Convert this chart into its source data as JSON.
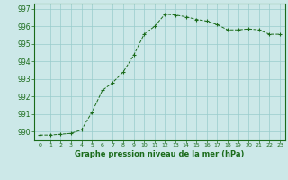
{
  "x": [
    0,
    1,
    2,
    3,
    4,
    5,
    6,
    7,
    8,
    9,
    10,
    11,
    12,
    13,
    14,
    15,
    16,
    17,
    18,
    19,
    20,
    21,
    22,
    23
  ],
  "y": [
    989.8,
    989.8,
    989.85,
    989.9,
    990.1,
    991.1,
    992.35,
    992.8,
    993.4,
    994.35,
    995.55,
    996.0,
    996.7,
    996.65,
    996.55,
    996.4,
    996.3,
    996.1,
    995.8,
    995.8,
    995.85,
    995.8,
    995.55,
    995.55
  ],
  "line_color": "#1a6b1a",
  "marker_color": "#1a6b1a",
  "bg_color": "#cce8e8",
  "grid_color": "#99cccc",
  "xlabel": "Graphe pression niveau de la mer (hPa)",
  "xlabel_color": "#1a6b1a",
  "xlabel_fontsize": 6.0,
  "ylim": [
    989.5,
    997.3
  ],
  "yticks": [
    990,
    991,
    992,
    993,
    994,
    995,
    996,
    997
  ],
  "xticks": [
    0,
    1,
    2,
    3,
    4,
    5,
    6,
    7,
    8,
    9,
    10,
    11,
    12,
    13,
    14,
    15,
    16,
    17,
    18,
    19,
    20,
    21,
    22,
    23
  ],
  "tick_color": "#1a6b1a",
  "ytick_fontsize": 5.5,
  "xtick_fontsize": 4.5,
  "border_color": "#1a6b1a",
  "xlim": [
    -0.5,
    23.5
  ]
}
